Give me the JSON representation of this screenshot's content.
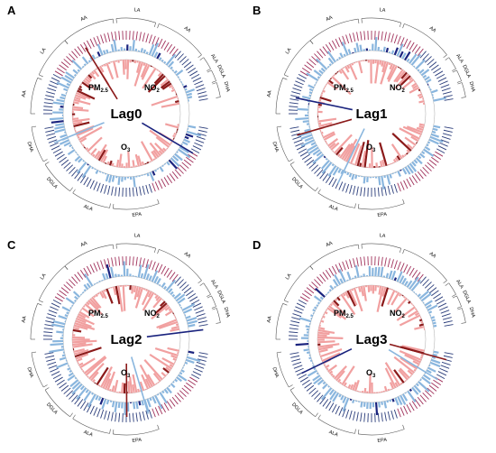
{
  "colors": {
    "red_dark": "#8b1a1a",
    "red_light": "#f1a0a0",
    "blue_dark": "#1a237e",
    "blue_light": "#8ab6de",
    "label_red": "#a0305a",
    "label_blue": "#2a3c7a"
  },
  "chart_data": [
    {
      "type": "circular-bar",
      "panel": "A",
      "title": "Lag0",
      "pollutants": [
        "PM2.5",
        "NO2",
        "O3"
      ],
      "pollutant_labels": [
        "PM",
        "2.5",
        "NO",
        "2",
        "O",
        "3"
      ],
      "group_labels": [
        "AA",
        "LA",
        "AA",
        "ALA",
        "DGLA",
        "DHA",
        "EPA",
        "ALA",
        "DGLA",
        "DHA"
      ]
    },
    {
      "type": "circular-bar",
      "panel": "B",
      "title": "Lag1",
      "pollutants": [
        "PM2.5",
        "NO2",
        "O3"
      ],
      "pollutant_labels": [
        "PM",
        "2.5",
        "NO",
        "2",
        "O",
        "3"
      ],
      "group_labels": [
        "AA",
        "LA",
        "AA",
        "ALA",
        "DGLA",
        "DHA",
        "EPA",
        "ALA",
        "DGLA",
        "DHA"
      ]
    },
    {
      "type": "circular-bar",
      "panel": "C",
      "title": "Lag2",
      "pollutants": [
        "PM2.5",
        "NO2",
        "O3"
      ],
      "pollutant_labels": [
        "PM",
        "2.5",
        "NO",
        "2",
        "O",
        "3"
      ],
      "group_labels": [
        "AA",
        "LA",
        "AA",
        "ALA",
        "DGLA",
        "DHA",
        "EPA",
        "ALA",
        "DGLA",
        "DHA"
      ]
    },
    {
      "type": "circular-bar",
      "panel": "D",
      "title": "Lag3",
      "pollutants": [
        "PM2.5",
        "NO2",
        "O3"
      ],
      "pollutant_labels": [
        "PM",
        "2.5",
        "NO",
        "2",
        "O",
        "3"
      ],
      "group_labels": [
        "AA",
        "LA",
        "AA",
        "ALA",
        "DGLA",
        "DHA",
        "EPA",
        "ALA",
        "DGLA",
        "DHA"
      ]
    }
  ]
}
